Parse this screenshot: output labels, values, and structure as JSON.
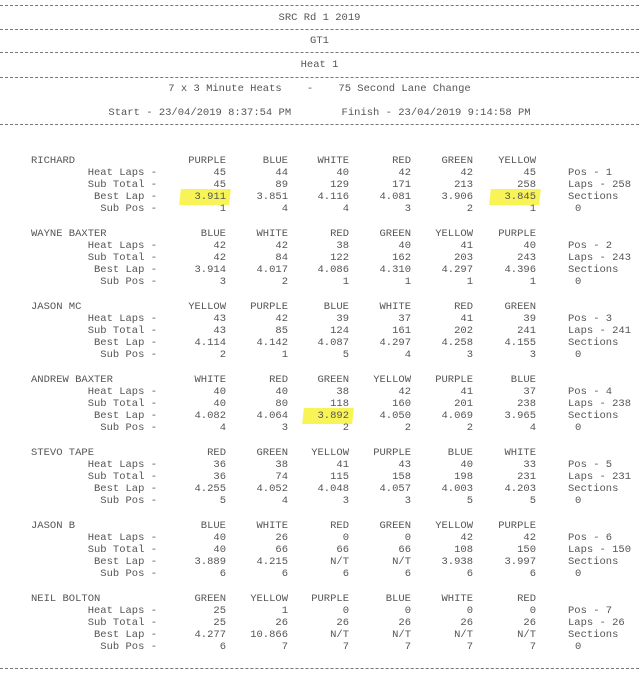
{
  "header": {
    "event": "SRC Rd 1 2019",
    "class": "GT1",
    "heat": "Heat 1",
    "format": "7 x 3 Minute Heats    -    75 Second Lane Change",
    "times": "Start - 23/04/2019 8:37:54 PM        Finish - 23/04/2019 9:14:58 PM"
  },
  "row_labels": [
    "Heat Laps -",
    "Sub Total -",
    "Best Lap -",
    "Sub Pos -"
  ],
  "highlight_color": "#f7f23a",
  "drivers": [
    {
      "name": "RICHARD",
      "lanes": [
        "PURPLE",
        "BLUE",
        "WHITE",
        "RED",
        "GREEN",
        "YELLOW"
      ],
      "heat_laps": [
        "45",
        "44",
        "40",
        "42",
        "42",
        "45"
      ],
      "sub_total": [
        "45",
        "89",
        "129",
        "171",
        "213",
        "258"
      ],
      "best_lap": [
        "3.911",
        "3.851",
        "4.116",
        "4.081",
        "3.906",
        "3.845"
      ],
      "sub_pos": [
        "1",
        "4",
        "4",
        "3",
        "2",
        "1"
      ],
      "pos": "Pos - 1",
      "laps": "Laps - 258",
      "sections_label": "Sections",
      "sections": "0",
      "highlight_best": [
        0,
        5
      ]
    },
    {
      "name": "WAYNE BAXTER",
      "lanes": [
        "BLUE",
        "WHITE",
        "RED",
        "GREEN",
        "YELLOW",
        "PURPLE"
      ],
      "heat_laps": [
        "42",
        "42",
        "38",
        "40",
        "41",
        "40"
      ],
      "sub_total": [
        "42",
        "84",
        "122",
        "162",
        "203",
        "243"
      ],
      "best_lap": [
        "3.914",
        "4.017",
        "4.086",
        "4.310",
        "4.297",
        "4.396"
      ],
      "sub_pos": [
        "3",
        "2",
        "1",
        "1",
        "1",
        "1"
      ],
      "pos": "Pos - 2",
      "laps": "Laps - 243",
      "sections_label": "Sections",
      "sections": "0",
      "highlight_best": []
    },
    {
      "name": "JASON MC",
      "lanes": [
        "YELLOW",
        "PURPLE",
        "BLUE",
        "WHITE",
        "RED",
        "GREEN"
      ],
      "heat_laps": [
        "43",
        "42",
        "39",
        "37",
        "41",
        "39"
      ],
      "sub_total": [
        "43",
        "85",
        "124",
        "161",
        "202",
        "241"
      ],
      "best_lap": [
        "4.114",
        "4.142",
        "4.087",
        "4.297",
        "4.258",
        "4.155"
      ],
      "sub_pos": [
        "2",
        "1",
        "5",
        "4",
        "3",
        "3"
      ],
      "pos": "Pos - 3",
      "laps": "Laps - 241",
      "sections_label": "Sections",
      "sections": "0",
      "highlight_best": []
    },
    {
      "name": "ANDREW BAXTER",
      "lanes": [
        "WHITE",
        "RED",
        "GREEN",
        "YELLOW",
        "PURPLE",
        "BLUE"
      ],
      "heat_laps": [
        "40",
        "40",
        "38",
        "42",
        "41",
        "37"
      ],
      "sub_total": [
        "40",
        "80",
        "118",
        "160",
        "201",
        "238"
      ],
      "best_lap": [
        "4.082",
        "4.064",
        "3.892",
        "4.050",
        "4.069",
        "3.965"
      ],
      "sub_pos": [
        "4",
        "3",
        "2",
        "2",
        "2",
        "4"
      ],
      "pos": "Pos - 4",
      "laps": "Laps - 238",
      "sections_label": "Sections",
      "sections": "0",
      "highlight_best": [
        2
      ]
    },
    {
      "name": "STEVO TAPE",
      "lanes": [
        "RED",
        "GREEN",
        "YELLOW",
        "PURPLE",
        "BLUE",
        "WHITE"
      ],
      "heat_laps": [
        "36",
        "38",
        "41",
        "43",
        "40",
        "33"
      ],
      "sub_total": [
        "36",
        "74",
        "115",
        "158",
        "198",
        "231"
      ],
      "best_lap": [
        "4.255",
        "4.052",
        "4.048",
        "4.057",
        "4.003",
        "4.203"
      ],
      "sub_pos": [
        "5",
        "4",
        "3",
        "3",
        "5",
        "5"
      ],
      "pos": "Pos - 5",
      "laps": "Laps - 231",
      "sections_label": "Sections",
      "sections": "0",
      "highlight_best": []
    },
    {
      "name": "JASON B",
      "lanes": [
        "BLUE",
        "WHITE",
        "RED",
        "GREEN",
        "YELLOW",
        "PURPLE"
      ],
      "heat_laps": [
        "40",
        "26",
        "0",
        "0",
        "42",
        "42"
      ],
      "sub_total": [
        "40",
        "66",
        "66",
        "66",
        "108",
        "150"
      ],
      "best_lap": [
        "3.889",
        "4.215",
        "N/T",
        "N/T",
        "3.938",
        "3.997"
      ],
      "sub_pos": [
        "6",
        "6",
        "6",
        "6",
        "6",
        "6"
      ],
      "pos": "Pos - 6",
      "laps": "Laps - 150",
      "sections_label": "Sections",
      "sections": "0",
      "highlight_best": []
    },
    {
      "name": "NEIL BOLTON",
      "lanes": [
        "GREEN",
        "YELLOW",
        "PURPLE",
        "BLUE",
        "WHITE",
        "RED"
      ],
      "heat_laps": [
        "25",
        "1",
        "0",
        "0",
        "0",
        "0"
      ],
      "sub_total": [
        "25",
        "26",
        "26",
        "26",
        "26",
        "26"
      ],
      "best_lap": [
        "4.277",
        "10.866",
        "N/T",
        "N/T",
        "N/T",
        "N/T"
      ],
      "sub_pos": [
        "6",
        "7",
        "7",
        "7",
        "7",
        "7"
      ],
      "pos": "Pos - 7",
      "laps": "Laps - 26",
      "sections_label": "Sections",
      "sections": "0",
      "highlight_best": []
    }
  ]
}
